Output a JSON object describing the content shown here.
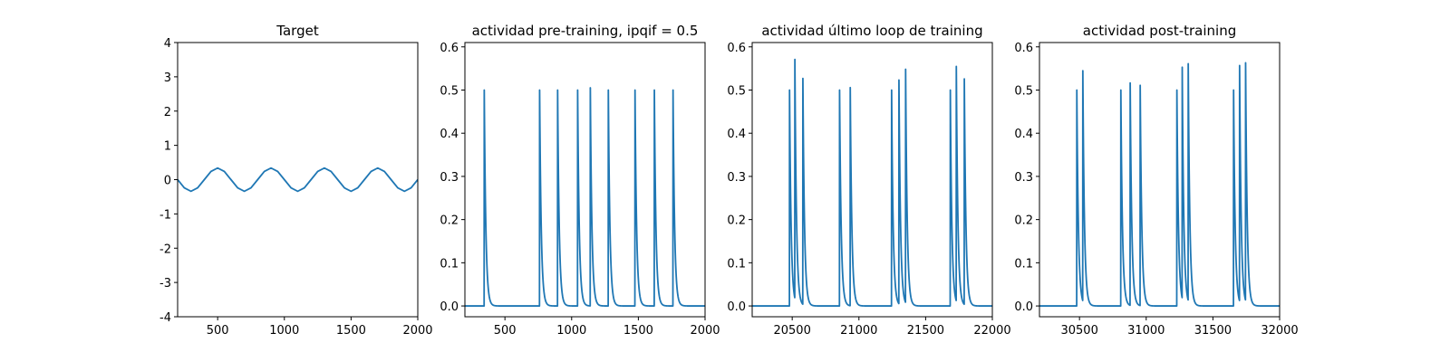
{
  "chart_data": [
    {
      "type": "line",
      "title": "Target",
      "xlabel": "",
      "ylabel": "",
      "xlim": [
        200,
        2000
      ],
      "ylim": [
        -4,
        4
      ],
      "xticks": [
        500,
        1000,
        1500,
        2000
      ],
      "yticks": [
        -4,
        -3,
        -2,
        -1,
        0,
        1,
        2,
        3,
        4
      ],
      "color": "#1f77b4",
      "grid": false,
      "series": [
        {
          "x": [
            200,
            250,
            300,
            350,
            400,
            450,
            500,
            550,
            600,
            650,
            700,
            750,
            800,
            850,
            900,
            950,
            1000,
            1050,
            1100,
            1150,
            1200,
            1250,
            1300,
            1350,
            1400,
            1450,
            1500,
            1550,
            1600,
            1650,
            1700,
            1750,
            1800,
            1850,
            1900,
            1950,
            2000
          ],
          "y": [
            0.0,
            -0.24,
            -0.34,
            -0.24,
            0.0,
            0.24,
            0.34,
            0.24,
            0.0,
            -0.24,
            -0.34,
            -0.24,
            0.0,
            0.24,
            0.34,
            0.24,
            0.0,
            -0.24,
            -0.34,
            -0.24,
            0.0,
            0.24,
            0.34,
            0.24,
            0.0,
            -0.24,
            -0.34,
            -0.24,
            0.0,
            0.24,
            0.34,
            0.24,
            0.0,
            -0.24,
            -0.34,
            -0.24,
            0.0
          ]
        }
      ]
    },
    {
      "type": "line",
      "title": "actividad pre-training, ipqif = 0.5",
      "xlabel": "",
      "ylabel": "",
      "xlim": [
        200,
        2000
      ],
      "ylim": [
        -0.025,
        0.61
      ],
      "xticks": [
        500,
        1000,
        1500,
        2000
      ],
      "yticks": [
        0.0,
        0.1,
        0.2,
        0.3,
        0.4,
        0.5,
        0.6
      ],
      "ytick_labels": [
        "0.0",
        "0.1",
        "0.2",
        "0.3",
        "0.4",
        "0.5",
        "0.6"
      ],
      "color": "#1f77b4",
      "grid": false,
      "spikes": {
        "times": [
          345,
          760,
          895,
          1045,
          1140,
          1275,
          1475,
          1620,
          1760
        ],
        "peaks": [
          0.5,
          0.5,
          0.5,
          0.5,
          0.505,
          0.5,
          0.5,
          0.5,
          0.5
        ],
        "decay": 12,
        "baseline": 0.0
      }
    },
    {
      "type": "line",
      "title": "actividad último loop de training",
      "xlabel": "",
      "ylabel": "",
      "xlim": [
        20200,
        22000
      ],
      "ylim": [
        -0.025,
        0.61
      ],
      "xticks": [
        20500,
        21000,
        21500,
        22000
      ],
      "yticks": [
        0.0,
        0.1,
        0.2,
        0.3,
        0.4,
        0.5,
        0.6
      ],
      "ytick_labels": [
        "0.0",
        "0.1",
        "0.2",
        "0.3",
        "0.4",
        "0.5",
        "0.6"
      ],
      "color": "#1f77b4",
      "grid": false,
      "spikes": {
        "times": [
          20480,
          20520,
          20580,
          20855,
          20935,
          21245,
          21300,
          21350,
          21685,
          21730,
          21790
        ],
        "peaks": [
          0.5,
          0.553,
          0.523,
          0.5,
          0.505,
          0.5,
          0.518,
          0.54,
          0.5,
          0.543,
          0.522
        ],
        "decay": 12,
        "baseline": 0.0
      }
    },
    {
      "type": "line",
      "title": "actividad post-training",
      "xlabel": "",
      "ylabel": "",
      "xlim": [
        30200,
        32000
      ],
      "ylim": [
        -0.025,
        0.61
      ],
      "xticks": [
        30500,
        31000,
        31500,
        32000
      ],
      "yticks": [
        0.0,
        0.1,
        0.2,
        0.3,
        0.4,
        0.5,
        0.6
      ],
      "ytick_labels": [
        "0.0",
        "0.1",
        "0.2",
        "0.3",
        "0.4",
        "0.5",
        "0.6"
      ],
      "color": "#1f77b4",
      "grid": false,
      "spikes": {
        "times": [
          30480,
          30525,
          30810,
          30880,
          30955,
          31230,
          31270,
          31315,
          31655,
          31700,
          31745
        ],
        "peaks": [
          0.5,
          0.533,
          0.5,
          0.515,
          0.51,
          0.5,
          0.535,
          0.548,
          0.5,
          0.545,
          0.55
        ],
        "decay": 12,
        "baseline": 0.0
      }
    }
  ]
}
